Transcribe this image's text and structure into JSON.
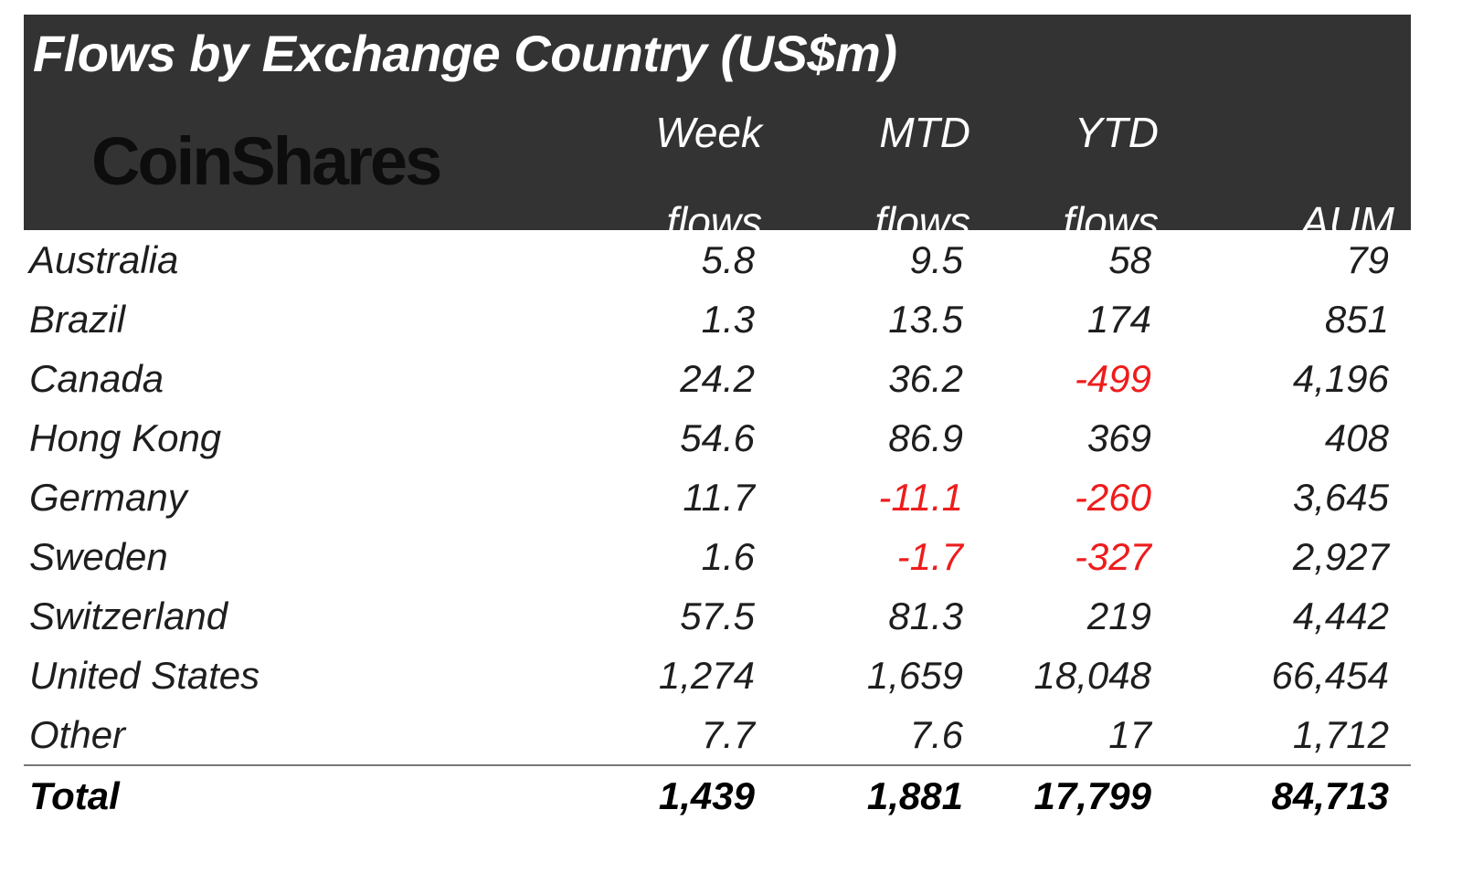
{
  "chart_data": {
    "type": "table",
    "title": "Flows by Exchange Country (US$m)",
    "brand": "CoinShares",
    "columns": [
      {
        "line1": "Week",
        "line2": "flows"
      },
      {
        "line1": "MTD",
        "line2": "flows"
      },
      {
        "line1": "YTD",
        "line2": "flows"
      },
      {
        "line1": "",
        "line2": "AUM"
      }
    ],
    "rows": [
      {
        "name": "Australia",
        "values": [
          "5.8",
          "9.5",
          "58",
          "79"
        ]
      },
      {
        "name": "Brazil",
        "values": [
          "1.3",
          "13.5",
          "174",
          "851"
        ]
      },
      {
        "name": "Canada",
        "values": [
          "24.2",
          "36.2",
          "-499",
          "4,196"
        ]
      },
      {
        "name": "Hong Kong",
        "values": [
          "54.6",
          "86.9",
          "369",
          "408"
        ]
      },
      {
        "name": "Germany",
        "values": [
          "11.7",
          "-11.1",
          "-260",
          "3,645"
        ]
      },
      {
        "name": "Sweden",
        "values": [
          "1.6",
          "-1.7",
          "-327",
          "2,927"
        ]
      },
      {
        "name": "Switzerland",
        "values": [
          "57.5",
          "81.3",
          "219",
          "4,442"
        ]
      },
      {
        "name": "United States",
        "values": [
          "1,274",
          "1,659",
          "18,048",
          "66,454"
        ]
      },
      {
        "name": "Other",
        "values": [
          "7.7",
          "7.6",
          "17",
          "1,712"
        ]
      }
    ],
    "total": {
      "name": "Total",
      "values": [
        "1,439",
        "1,881",
        "17,799",
        "84,713"
      ]
    },
    "colors": {
      "header_bg": "#333333",
      "header_text": "#ffffff",
      "negative": "#ee1c1c",
      "text": "#1e1e1e"
    }
  }
}
